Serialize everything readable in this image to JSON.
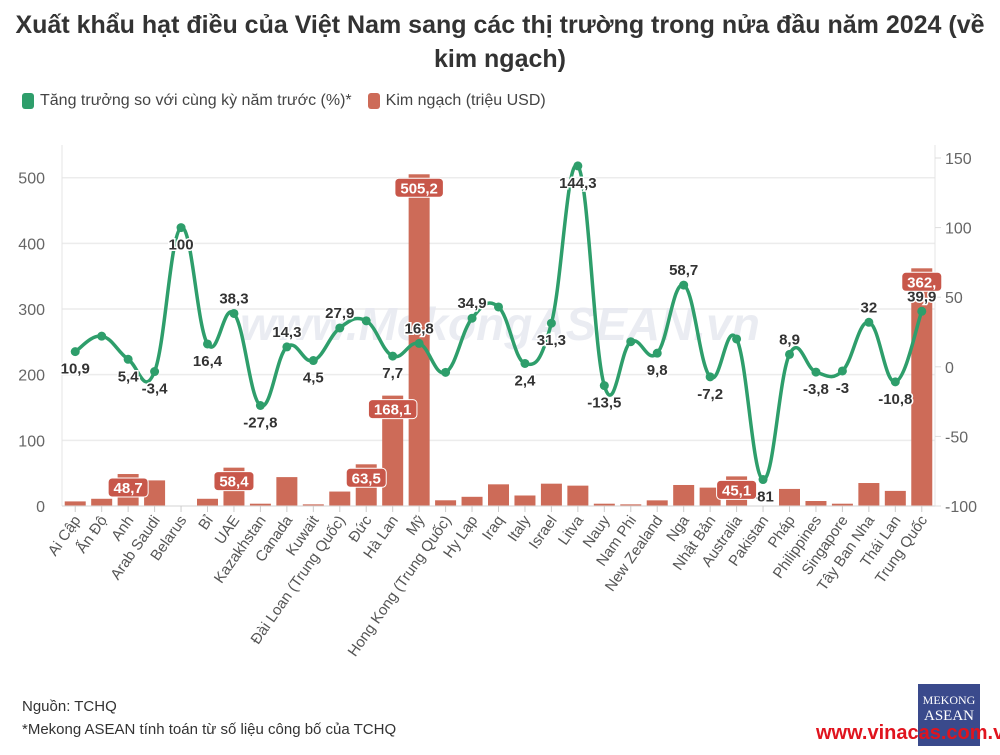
{
  "chart_data": {
    "type": "bar+line",
    "title": "Xuất khẩu hạt điều của Việt Nam sang các thị trường trong nửa đầu năm 2024 (về kim ngạch)",
    "categories": [
      "Ai Cập",
      "Ấn Độ",
      "Anh",
      "Arab Saudi",
      "Belarus",
      "Bỉ",
      "UAE",
      "Kazakhstan",
      "Canada",
      "Kuwait",
      "Đài Loan (Trung Quốc)",
      "Đức",
      "Hà Lan",
      "Mỹ",
      "Hong Kong (Trung Quốc)",
      "Hy Lạp",
      "Iraq",
      "Italy",
      "Israel",
      "Litva",
      "Nauy",
      "Nam Phi",
      "New Zealand",
      "Nga",
      "Nhật Bản",
      "Australia",
      "Pakistan",
      "Pháp",
      "Philippines",
      "Singapore",
      "Tây Ban Nha",
      "Thái Lan",
      "Trung Quốc"
    ],
    "series": [
      {
        "name": "Kim ngạch (triệu USD)",
        "type": "bar",
        "axis": "left",
        "color": "#cd6b58",
        "values": [
          7,
          11,
          48.7,
          39,
          0.5,
          11,
          58.4,
          3.5,
          44,
          2.5,
          22,
          63.5,
          168.1,
          505.2,
          8.7,
          14,
          33,
          16,
          34,
          31,
          3.5,
          2.5,
          8.6,
          32,
          28,
          45.1,
          0.5,
          26,
          7.6,
          3.5,
          35,
          23,
          362
        ],
        "labels": [
          null,
          null,
          "48,7",
          null,
          null,
          null,
          "58,4",
          null,
          null,
          null,
          null,
          "63,5",
          "168,1",
          "505,2",
          null,
          null,
          null,
          null,
          null,
          null,
          null,
          null,
          null,
          null,
          null,
          "45,1",
          null,
          null,
          null,
          null,
          null,
          null,
          "362,"
        ]
      },
      {
        "name": "Tăng trưởng so với cùng kỳ năm trước (%)*",
        "type": "line",
        "axis": "right",
        "color": "#2e9e6b",
        "values": [
          10.9,
          22,
          5.4,
          -3.4,
          100,
          16.4,
          38.3,
          -27.8,
          14.3,
          4.5,
          27.9,
          33,
          7.7,
          16.8,
          -4,
          34.9,
          43,
          2.4,
          31.3,
          144.3,
          -13.5,
          18,
          9.8,
          58.7,
          -7.2,
          20,
          -81,
          8.9,
          -3.8,
          -3,
          32,
          -10.8,
          39.9
        ],
        "labels": [
          "10,9",
          null,
          "5,4",
          "-3,4",
          "100",
          "16,4",
          "38,3",
          "-27,8",
          "14,3",
          "4,5",
          "27,9",
          null,
          "7,7",
          "16,8",
          null,
          "34,9",
          null,
          "2,4",
          "31,3",
          "144,3",
          "-13,5",
          null,
          "9,8",
          "58,7",
          "-7,2",
          null,
          "-81",
          "8,9",
          "-3,8",
          "-3",
          "32",
          "-10,8",
          "39,9"
        ]
      }
    ],
    "left_axis": {
      "ylim": [
        0,
        530
      ],
      "ticks": [
        0,
        100,
        200,
        300,
        400,
        500
      ],
      "tick_labels": [
        "0",
        "100",
        "200",
        "300",
        "400",
        "500"
      ]
    },
    "right_axis": {
      "ylim": [
        -100,
        150
      ],
      "ticks": [
        -100,
        -50,
        0,
        50,
        100,
        150
      ],
      "tick_labels": [
        "-100",
        "-50",
        "0",
        "50",
        "100",
        "150"
      ]
    },
    "grid": true,
    "legend_placement": "top-left",
    "watermark": "www.MekongASEAN.vn"
  },
  "title": "Xuất khẩu hạt điều của Việt Nam sang các thị trường trong nửa đầu năm 2024 (về kim ngạch)",
  "legend": [
    {
      "label": "Tăng trưởng so với cùng kỳ năm trước (%)*",
      "color": "#2e9e6b"
    },
    {
      "label": "Kim ngạch (triệu USD)",
      "color": "#cd6b58"
    }
  ],
  "footer": {
    "source": "Nguồn: TCHQ",
    "note": "*Mekong ASEAN tính toán từ số liệu công bố của TCHQ"
  },
  "logo": {
    "line1": "MEKONG",
    "line2": "ASEAN"
  },
  "site": "www.vinacas.com.vn"
}
